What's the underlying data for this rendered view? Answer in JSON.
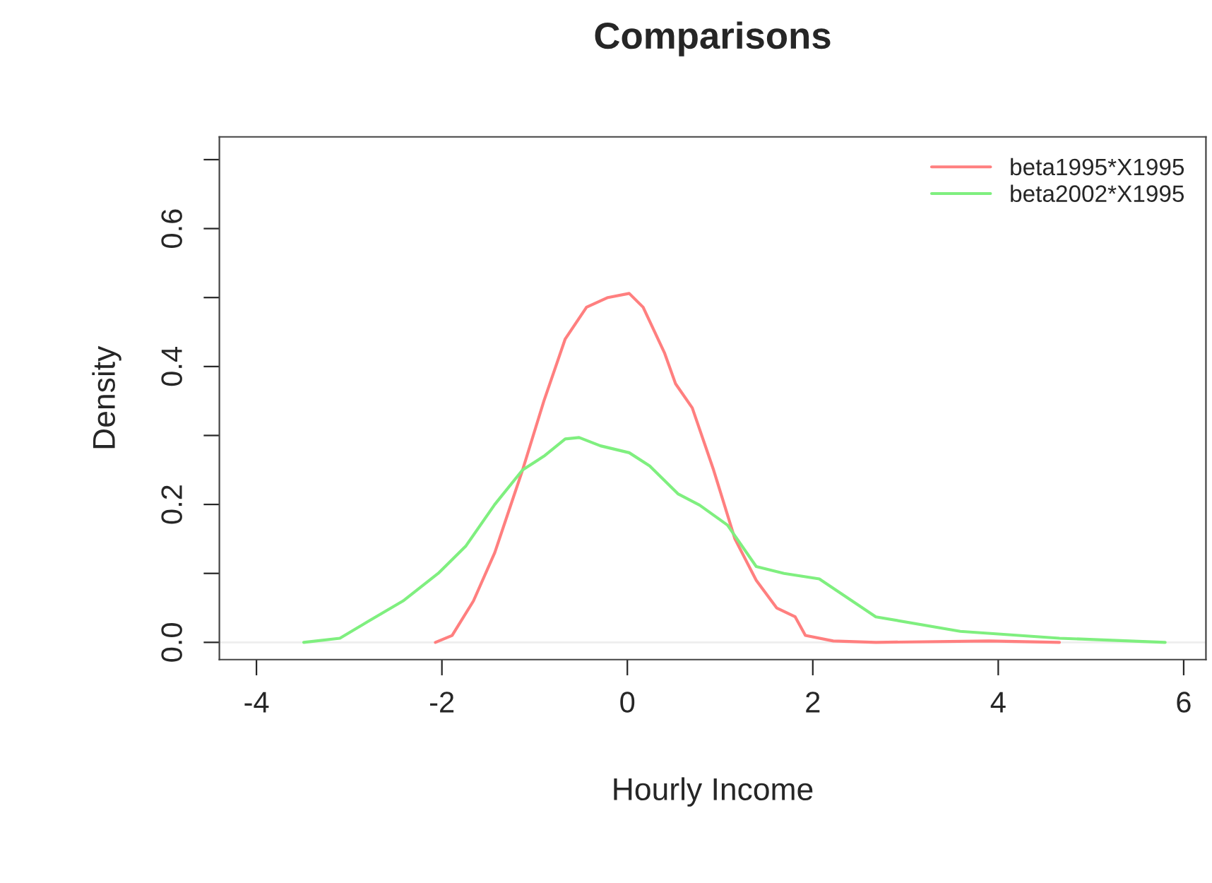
{
  "chart_data": {
    "type": "line",
    "title": "Comparisons",
    "xlabel": "Hourly Income",
    "ylabel": "Density",
    "xlim": [
      -4.4,
      6.24
    ],
    "xticks": [
      -4,
      -2,
      0,
      2,
      4,
      6
    ],
    "ylim": [
      -0.025,
      0.733
    ],
    "yticks": [
      {
        "value": 0,
        "label": "0.0"
      },
      {
        "value": 0.1,
        "label": null
      },
      {
        "value": 0.2,
        "label": "0.2"
      },
      {
        "value": 0.3,
        "label": null
      },
      {
        "value": 0.4,
        "label": "0.4"
      },
      {
        "value": 0.5,
        "label": null
      },
      {
        "value": 0.6,
        "label": "0.6"
      },
      {
        "value": 0.7,
        "label": null
      }
    ],
    "grid": false,
    "legend": "top right",
    "marker": "none",
    "line_style": "solid",
    "ref_lines": [
      {
        "axis": "y",
        "value": 0,
        "color": "#eeeeee"
      }
    ],
    "series": [
      {
        "name": "beta1995*X1995",
        "color": "#ff7f7f",
        "x": [
          -2.07,
          -1.89,
          -1.66,
          -1.43,
          -1.13,
          -0.9,
          -0.67,
          -0.44,
          -0.21,
          0.02,
          0.17,
          0.4,
          0.52,
          0.7,
          0.93,
          1.16,
          1.39,
          1.61,
          1.81,
          1.92,
          2.22,
          2.68,
          3.9,
          4.66
        ],
        "values": [
          0,
          0.01,
          0.06,
          0.13,
          0.25,
          0.35,
          0.44,
          0.486,
          0.5,
          0.506,
          0.486,
          0.42,
          0.375,
          0.34,
          0.25,
          0.15,
          0.09,
          0.05,
          0.037,
          0.01,
          0.002,
          0,
          0.002,
          0
        ]
      },
      {
        "name": "beta2002*X1995",
        "color": "#7fef7f",
        "x": [
          -3.49,
          -3.1,
          -2.8,
          -2.42,
          -2.04,
          -1.74,
          -1.43,
          -1.13,
          -0.9,
          -0.67,
          -0.52,
          -0.29,
          0.02,
          0.24,
          0.55,
          0.78,
          1.08,
          1.39,
          1.69,
          2.07,
          2.68,
          3.59,
          4.66,
          5.8
        ],
        "values": [
          0,
          0.006,
          0.03,
          0.06,
          0.1,
          0.14,
          0.2,
          0.25,
          0.27,
          0.295,
          0.297,
          0.285,
          0.275,
          0.256,
          0.215,
          0.199,
          0.17,
          0.11,
          0.1,
          0.092,
          0.037,
          0.016,
          0.006,
          0
        ]
      }
    ]
  }
}
